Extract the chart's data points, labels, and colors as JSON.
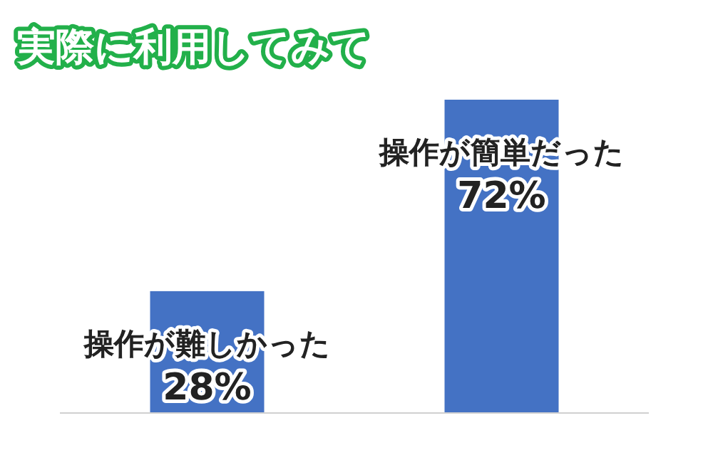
{
  "chart_data": {
    "type": "bar",
    "title": "実際に利用してみて",
    "categories": [
      "操作が難しかった",
      "操作が簡単だった"
    ],
    "values": [
      28,
      72
    ],
    "value_labels": [
      "28%",
      "72%"
    ],
    "color": "#4472c4",
    "ylim": [
      0,
      72
    ]
  }
}
